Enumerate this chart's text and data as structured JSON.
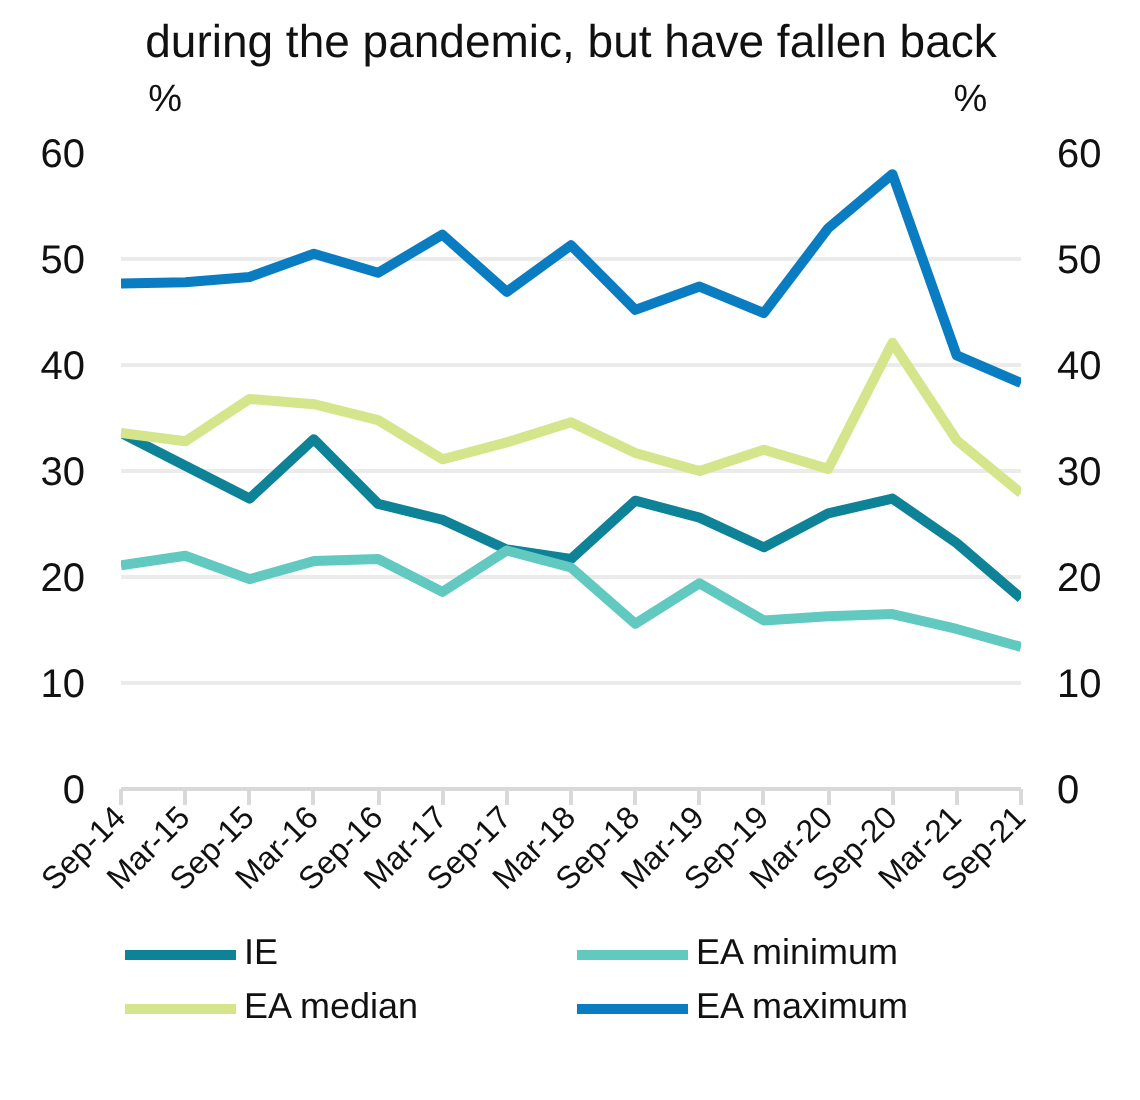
{
  "chart_data": {
    "type": "line",
    "title": "during the pandemic, but have fallen back",
    "ylabel": "%",
    "y2label": "%",
    "categories": [
      "Sep-14",
      "Mar-15",
      "Sep-15",
      "Mar-16",
      "Sep-16",
      "Mar-17",
      "Sep-17",
      "Mar-18",
      "Sep-18",
      "Mar-19",
      "Sep-19",
      "Mar-20",
      "Sep-20",
      "Mar-21",
      "Sep-21"
    ],
    "series": [
      {
        "name": "IE",
        "color": "#0e8296",
        "values": [
          33.6,
          30.5,
          27.4,
          33.0,
          26.9,
          25.4,
          22.6,
          21.7,
          27.2,
          25.6,
          22.8,
          26.0,
          27.4,
          23.2,
          18.0
        ]
      },
      {
        "name": "EA minimum",
        "color": "#62c9c1",
        "values": [
          21.1,
          22.0,
          19.8,
          21.5,
          21.7,
          18.6,
          22.5,
          20.9,
          15.6,
          19.4,
          15.9,
          16.3,
          16.5,
          15.1,
          13.4
        ]
      },
      {
        "name": "EA median",
        "color": "#d4e58c",
        "values": [
          33.6,
          32.8,
          36.8,
          36.3,
          34.8,
          31.1,
          32.7,
          34.6,
          31.7,
          30.0,
          32.0,
          30.2,
          42.1,
          32.9,
          27.9
        ]
      },
      {
        "name": "EA maximum",
        "color": "#0a7dc2",
        "values": [
          47.7,
          47.8,
          48.3,
          50.5,
          48.7,
          52.3,
          46.9,
          51.3,
          45.2,
          47.4,
          44.9,
          52.9,
          58.0,
          40.9,
          38.3
        ]
      }
    ],
    "ylim": [
      0,
      60
    ],
    "yticks": [
      0,
      10,
      20,
      30,
      40,
      50,
      60
    ],
    "y2lim": [
      0,
      60
    ],
    "y2ticks": [
      0,
      10,
      20,
      30,
      40,
      50,
      60
    ],
    "grid": "y",
    "legend": "bottom",
    "line_style": "solid"
  }
}
